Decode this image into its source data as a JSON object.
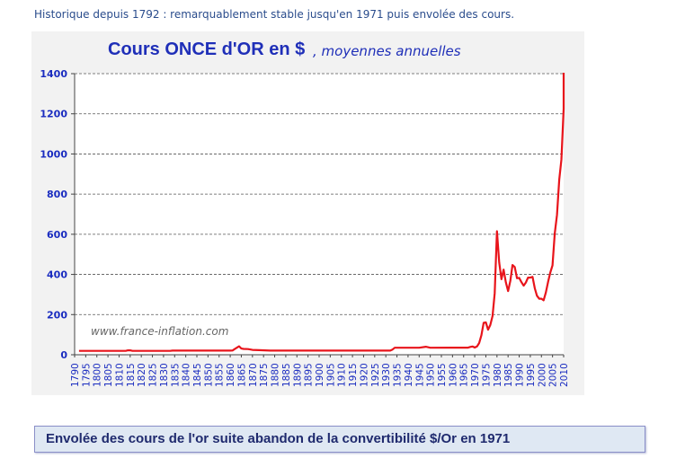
{
  "header": {
    "text": "Historique depuis 1792 : remarquablement stable jusqu'en 1971 puis envolée des cours."
  },
  "chart_data": {
    "type": "line",
    "title": "Cours ONCE d'OR en $",
    "subtitle": ", moyennes annuelles",
    "watermark": "www.france-inflation.com",
    "xlabel": "",
    "ylabel": "",
    "xlim": [
      1790,
      2010
    ],
    "ylim": [
      0,
      1400
    ],
    "yticks": [
      0,
      200,
      400,
      600,
      800,
      1000,
      1200,
      1400
    ],
    "xticks": [
      "1790",
      "1795",
      "1800",
      "1805",
      "1810",
      "1815",
      "1820",
      "1825",
      "1830",
      "1835",
      "1840",
      "1845",
      "1850",
      "1855",
      "1860",
      "1865",
      "1870",
      "1875",
      "1880",
      "1885",
      "1890",
      "1895",
      "1900",
      "1905",
      "1910",
      "1915",
      "1920",
      "1925",
      "1930",
      "1935",
      "1940",
      "1945",
      "1950",
      "1955",
      "1960",
      "1965",
      "1970",
      "1975",
      "1980",
      "1985",
      "1990",
      "1995",
      "2000",
      "2005",
      "2010"
    ],
    "grid": "horizontal dashed",
    "legend": "none",
    "series": [
      {
        "color": "#e8141b",
        "points": [
          [
            1792,
            19.4
          ],
          [
            1800,
            19.4
          ],
          [
            1813,
            19.4
          ],
          [
            1814,
            22
          ],
          [
            1815,
            22
          ],
          [
            1816,
            19.4
          ],
          [
            1833,
            19.4
          ],
          [
            1834,
            20.7
          ],
          [
            1860,
            20.7
          ],
          [
            1861,
            21
          ],
          [
            1862,
            28
          ],
          [
            1864,
            42
          ],
          [
            1865,
            31
          ],
          [
            1866,
            29
          ],
          [
            1868,
            28
          ],
          [
            1870,
            24
          ],
          [
            1873,
            23
          ],
          [
            1878,
            20.7
          ],
          [
            1900,
            20.7
          ],
          [
            1920,
            20.7
          ],
          [
            1932,
            20.7
          ],
          [
            1933,
            26
          ],
          [
            1934,
            35
          ],
          [
            1940,
            35
          ],
          [
            1945,
            35
          ],
          [
            1948,
            40
          ],
          [
            1950,
            35
          ],
          [
            1960,
            35.3
          ],
          [
            1967,
            35.2
          ],
          [
            1968,
            39
          ],
          [
            1969,
            41
          ],
          [
            1970,
            36
          ],
          [
            1971,
            41
          ],
          [
            1972,
            58
          ],
          [
            1973,
            97
          ],
          [
            1974,
            159
          ],
          [
            1975,
            161
          ],
          [
            1976,
            125
          ],
          [
            1977,
            148
          ],
          [
            1978,
            193
          ],
          [
            1979,
            306
          ],
          [
            1980,
            615
          ],
          [
            1981,
            460
          ],
          [
            1982,
            376
          ],
          [
            1983,
            424
          ],
          [
            1984,
            361
          ],
          [
            1985,
            317
          ],
          [
            1986,
            368
          ],
          [
            1987,
            447
          ],
          [
            1988,
            437
          ],
          [
            1989,
            381
          ],
          [
            1990,
            383
          ],
          [
            1991,
            362
          ],
          [
            1992,
            344
          ],
          [
            1993,
            360
          ],
          [
            1994,
            384
          ],
          [
            1995,
            384
          ],
          [
            1996,
            388
          ],
          [
            1997,
            331
          ],
          [
            1998,
            294
          ],
          [
            1999,
            279
          ],
          [
            2000,
            279
          ],
          [
            2001,
            271
          ],
          [
            2002,
            310
          ],
          [
            2003,
            363
          ],
          [
            2004,
            410
          ],
          [
            2005,
            445
          ],
          [
            2006,
            604
          ],
          [
            2007,
            697
          ],
          [
            2008,
            872
          ],
          [
            2009,
            972
          ],
          [
            2010,
            1225
          ],
          [
            2011,
            1572
          ]
        ]
      }
    ]
  },
  "footer": {
    "text": "Envolée des cours de l'or suite abandon de la convertibilité $/Or en 1971"
  }
}
